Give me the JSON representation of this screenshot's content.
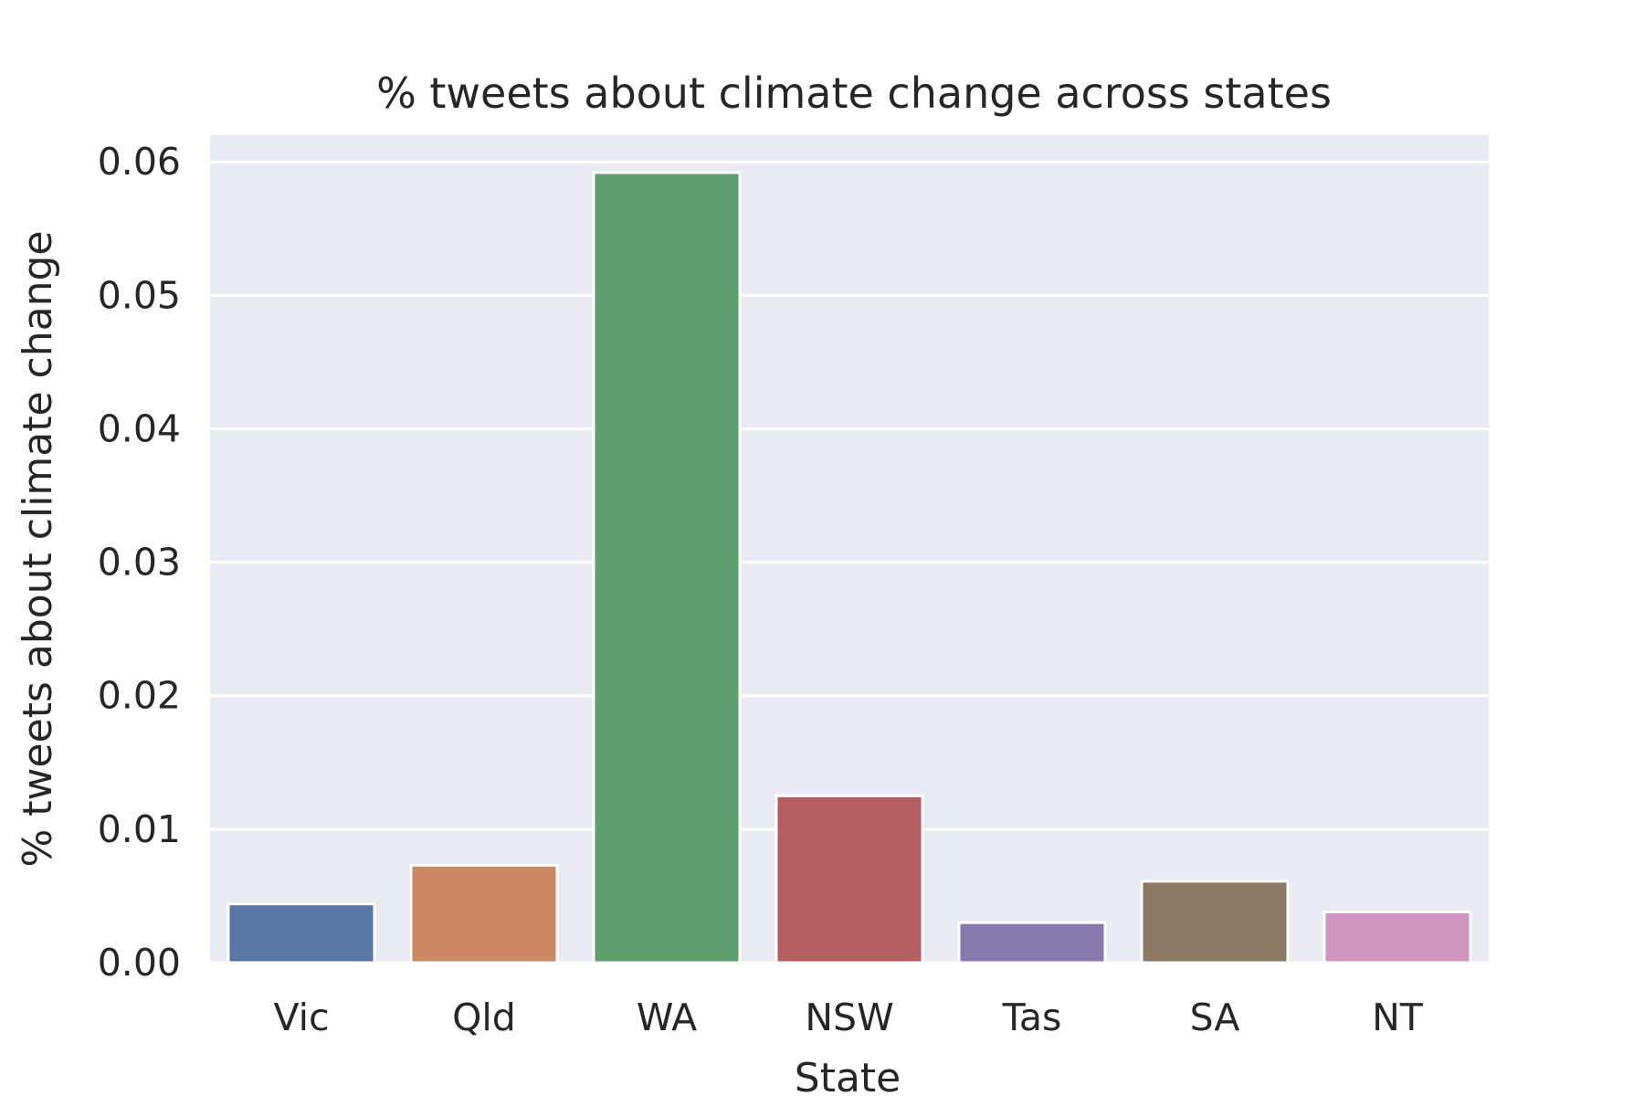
{
  "chart_data": {
    "type": "bar",
    "title": "% tweets about climate change across states",
    "xlabel": "State",
    "ylabel": "% tweets about climate change",
    "categories": [
      "Vic",
      "Qld",
      "WA",
      "NSW",
      "Tas",
      "SA",
      "NT"
    ],
    "values": [
      0.0044,
      0.0073,
      0.0592,
      0.0125,
      0.003,
      0.0061,
      0.0038
    ],
    "colors": [
      "#5975a4",
      "#cc8963",
      "#5f9e6e",
      "#b55d60",
      "#857aab",
      "#8d7866",
      "#d095bf"
    ],
    "ylim": [
      0,
      0.062
    ],
    "yticks": [
      "0.00",
      "0.01",
      "0.02",
      "0.03",
      "0.04",
      "0.05",
      "0.06"
    ],
    "ytick_values": [
      0,
      0.01,
      0.02,
      0.03,
      0.04,
      0.05,
      0.06
    ],
    "grid": true,
    "background": "#eaeaf2"
  }
}
